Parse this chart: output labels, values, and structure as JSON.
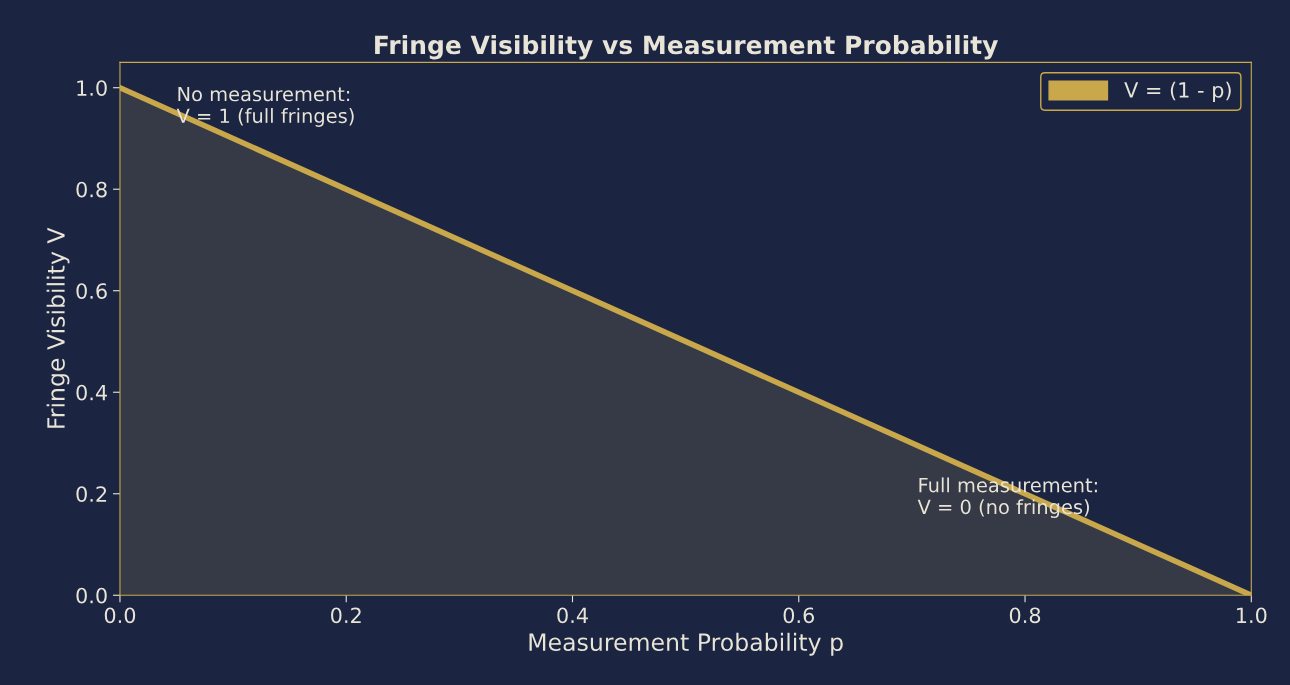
{
  "chart_data": {
    "type": "area",
    "title": "Fringe Visibility vs Measurement Probability",
    "xlabel": "Measurement Probability p",
    "ylabel": "Fringe Visibility V",
    "x": [
      0,
      1
    ],
    "series": [
      {
        "name": "V = (1 - p)",
        "color": "#c9a84c",
        "values": [
          1,
          0
        ]
      }
    ],
    "xlim": [
      0,
      1
    ],
    "ylim": [
      0,
      1.05
    ],
    "xticks": [
      {
        "value": 0,
        "label": "0.0"
      },
      0.2,
      0.4,
      0.6,
      0.8,
      {
        "value": 1,
        "label": "1.0"
      }
    ],
    "yticks": [
      {
        "value": 0,
        "label": "0.0"
      },
      0.2,
      0.4,
      0.6,
      0.8,
      {
        "value": 1,
        "label": "1.0"
      }
    ],
    "annotations": [
      "No measurement:\nV = 1 (full fringes)",
      "Full measurement:\nV = 0 (no fringes)"
    ],
    "grid": false,
    "legend": "top right"
  }
}
